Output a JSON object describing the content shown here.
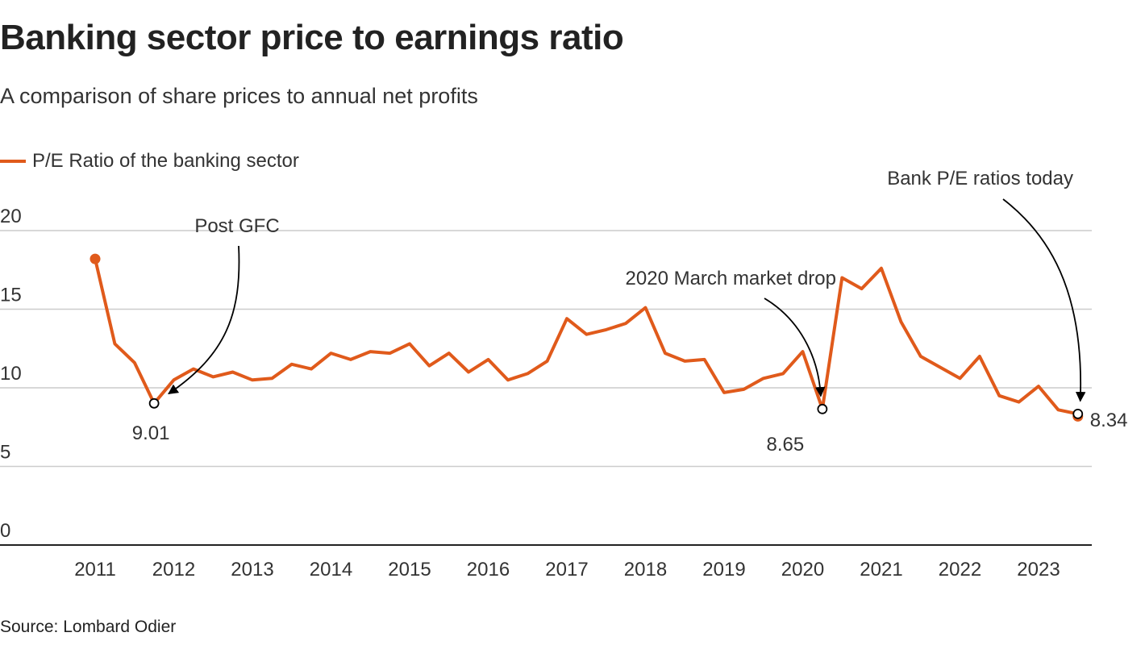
{
  "header": {
    "title": "Banking sector price to earnings ratio",
    "subtitle": "A comparison of share prices to annual net profits"
  },
  "legend": {
    "label": "P/E Ratio of the banking sector"
  },
  "source": "Source: Lombard Odier",
  "colors": {
    "series": "#e05a1b",
    "grid": "#cccccc",
    "axis": "#222222",
    "annotation": "#000000"
  },
  "chart_data": {
    "type": "line",
    "title": "Banking sector price to earnings ratio",
    "subtitle": "A comparison of share prices to annual net profits",
    "xlabel": "",
    "ylabel": "",
    "ylim": [
      0,
      20
    ],
    "y_ticks": [
      "0",
      "5",
      "10",
      "15",
      "20"
    ],
    "xlim": [
      2011,
      2023.5
    ],
    "x_ticks": [
      "2011",
      "2012",
      "2013",
      "2014",
      "2015",
      "2016",
      "2017",
      "2018",
      "2019",
      "2020",
      "2021",
      "2022",
      "2023"
    ],
    "grid": true,
    "legend_position": "top-left",
    "series": [
      {
        "name": "P/E Ratio of the banking sector",
        "x": [
          2011.0,
          2011.25,
          2011.5,
          2011.75,
          2012.0,
          2012.25,
          2012.5,
          2012.75,
          2013.0,
          2013.25,
          2013.5,
          2013.75,
          2014.0,
          2014.25,
          2014.5,
          2014.75,
          2015.0,
          2015.25,
          2015.5,
          2015.75,
          2016.0,
          2016.25,
          2016.5,
          2016.75,
          2017.0,
          2017.25,
          2017.5,
          2017.75,
          2018.0,
          2018.25,
          2018.5,
          2018.75,
          2019.0,
          2019.25,
          2019.5,
          2019.75,
          2020.0,
          2020.25,
          2020.5,
          2020.75,
          2021.0,
          2021.25,
          2021.5,
          2021.75,
          2022.0,
          2022.25,
          2022.5,
          2022.75,
          2023.0,
          2023.25,
          2023.5
        ],
        "values": [
          18.2,
          12.8,
          11.6,
          9.01,
          10.5,
          11.2,
          10.7,
          11.0,
          10.5,
          10.6,
          11.5,
          11.2,
          12.2,
          11.8,
          12.3,
          12.2,
          12.8,
          11.4,
          12.2,
          11.0,
          11.8,
          10.5,
          10.9,
          11.7,
          14.4,
          13.4,
          13.7,
          14.1,
          15.1,
          12.2,
          11.7,
          11.8,
          9.7,
          9.9,
          10.6,
          10.9,
          12.3,
          8.65,
          17.0,
          16.3,
          17.6,
          14.2,
          12.0,
          11.3,
          10.6,
          12.0,
          9.5,
          9.1,
          10.1,
          8.6,
          8.34
        ]
      }
    ],
    "annotations": [
      {
        "text": "Post GFC",
        "x": 2011.75,
        "y": 9.01,
        "value_label": "9.01"
      },
      {
        "text": "2020 March market drop",
        "x": 2020.25,
        "y": 8.65,
        "value_label": "8.65"
      },
      {
        "text": "Bank P/E ratios today",
        "x": 2023.5,
        "y": 8.34,
        "value_label": "8.34"
      }
    ]
  }
}
